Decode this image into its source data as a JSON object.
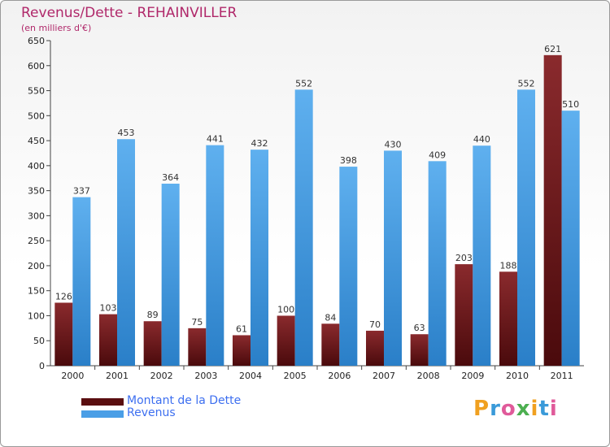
{
  "header": {
    "title": "Revenus/Dette - REHAINVILLER",
    "subtitle": "(en milliers d'€)"
  },
  "colors": {
    "dette": "#7a1f22",
    "dette_dark": "#4a0a0c",
    "revenus": "#5aa8e8",
    "revenus_dark": "#2a7fc8",
    "title": "#b0286a",
    "legend_text": "#3d6ff0"
  },
  "legend": {
    "dette_label": "Montant de la Dette",
    "revenus_label": "Revenus"
  },
  "logo": {
    "letters": [
      "P",
      "r",
      "o",
      "x",
      "i",
      "t",
      "i"
    ],
    "colors": [
      "#f0a020",
      "#3a9ad9",
      "#e05a9a",
      "#4caf50",
      "#f0a020",
      "#3a9ad9",
      "#e05a9a"
    ]
  },
  "chart_data": {
    "type": "bar",
    "title": "Revenus/Dette - REHAINVILLER",
    "ylabel": "(en milliers d'€)",
    "xlabel": "",
    "ylim": [
      0,
      650
    ],
    "yticks": [
      0,
      50,
      100,
      150,
      200,
      250,
      300,
      350,
      400,
      450,
      500,
      550,
      600,
      650
    ],
    "grid": false,
    "categories": [
      "2000",
      "2001",
      "2002",
      "2003",
      "2004",
      "2005",
      "2006",
      "2007",
      "2008",
      "2009",
      "2010",
      "2011"
    ],
    "series": [
      {
        "name": "Montant de la Dette",
        "values": [
          126,
          103,
          89,
          75,
          61,
          100,
          84,
          70,
          63,
          203,
          188,
          621
        ]
      },
      {
        "name": "Revenus",
        "values": [
          337,
          453,
          364,
          441,
          432,
          552,
          398,
          430,
          409,
          440,
          552,
          510
        ]
      }
    ]
  }
}
